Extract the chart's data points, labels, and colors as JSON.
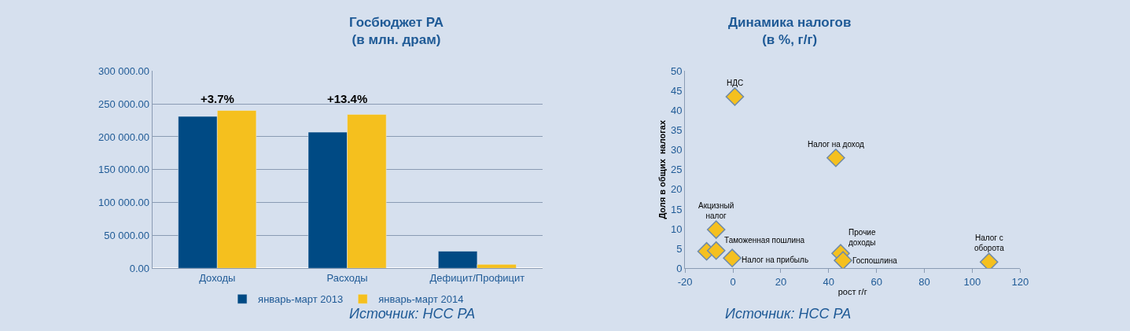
{
  "chart_data": [
    {
      "type": "bar",
      "title": "Госбюджет РА\n(в млн. драм)",
      "categories": [
        "Доходы",
        "Расходы",
        "Дефицит/Профицит"
      ],
      "series": [
        {
          "name": "январь-март 2013",
          "color": "#004a84",
          "values": [
            231000,
            207000,
            26000
          ]
        },
        {
          "name": "январь-март 2014",
          "color": "#f5c01e",
          "values": [
            240000,
            234000,
            6000
          ]
        }
      ],
      "ylim": [
        0,
        300000
      ],
      "yticks": [
        {
          "value": 0,
          "label": "0.00"
        },
        {
          "value": 50000,
          "label": "50 000.00"
        },
        {
          "value": 100000,
          "label": "100 000.00"
        },
        {
          "value": 150000,
          "label": "150 000.00"
        },
        {
          "value": 200000,
          "label": "200 000.00"
        },
        {
          "value": 250000,
          "label": "250 000.00"
        },
        {
          "value": 300000,
          "label": "300 000.00"
        }
      ],
      "grid": "y",
      "legend": "bottom",
      "annotations": [
        "+3.7%",
        "+13.4%",
        "Источник: НСС РА"
      ]
    },
    {
      "type": "scatter",
      "title": "Динамика налогов\n(в %, г/г)",
      "xlabel": "рост г/г",
      "ylabel": "Доля в общих  налогах",
      "x": [
        0.8,
        43,
        -7,
        -11,
        -7,
        -0.3,
        45,
        46,
        107
      ],
      "series": [
        {
          "color": "#f5c01e",
          "values": [
            43.5,
            28,
            9.8,
            4.3,
            4.5,
            2.6,
            3.8,
            2,
            1.6
          ]
        }
      ],
      "marker": "diamond",
      "xlim": [
        -20,
        120
      ],
      "xticks": [
        -20,
        0,
        20,
        40,
        60,
        80,
        100,
        120
      ],
      "ylim": [
        0,
        50
      ],
      "yticks": [
        0,
        5,
        10,
        15,
        20,
        25,
        30,
        35,
        40,
        45,
        50
      ],
      "grid": false,
      "legend": false,
      "annotations": [
        {
          "text": "НДС",
          "x": 0.8,
          "y": 43.5
        },
        {
          "text": "Налог на доход",
          "x": 43,
          "y": 28
        },
        {
          "text": "Акцизный\nналог",
          "x": -7,
          "y": 9.8
        },
        {
          "text": "Таможенная\nпошлина",
          "x": -7,
          "y": 4.5
        },
        {
          "text": "Налог на\nприбыль",
          "x": -0.3,
          "y": 2.6
        },
        {
          "text": "Прочие\nдоходы",
          "x": 45,
          "y": 3.8
        },
        {
          "text": "Госпошлина",
          "x": 46,
          "y": 2
        },
        {
          "text": "Налог с\nоборота",
          "x": 107,
          "y": 1.6
        },
        "Источник: НСС РА"
      ]
    }
  ]
}
